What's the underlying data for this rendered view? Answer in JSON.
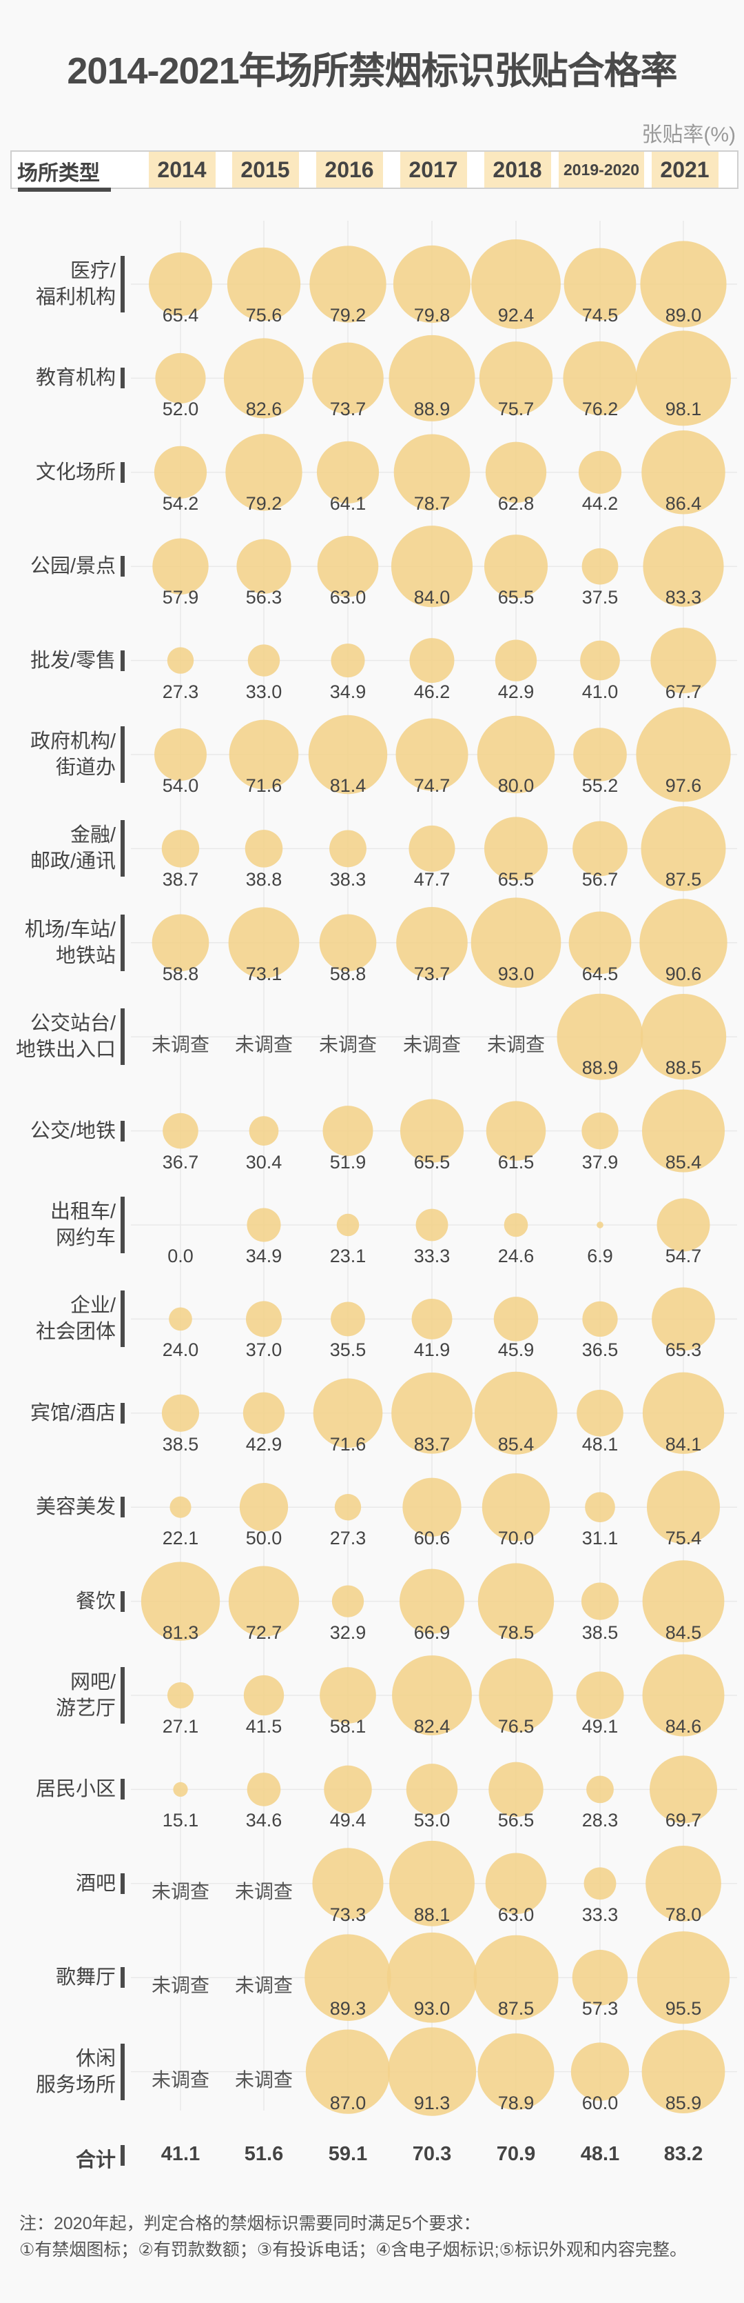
{
  "chart_data": {
    "type": "bubble-table",
    "title": "2014-2021年场所禁烟标识张贴合格率",
    "unit_label": "张贴率(%)",
    "row_header": "场所类型",
    "columns": [
      "2014",
      "2015",
      "2016",
      "2017",
      "2018",
      "2019-2020",
      "2021"
    ],
    "not_surveyed_label": "未调查",
    "rows": [
      {
        "label": "医疗/\n福利机构",
        "values": [
          65.4,
          75.6,
          79.2,
          79.8,
          92.4,
          74.5,
          89.0
        ]
      },
      {
        "label": "教育机构",
        "values": [
          52.0,
          82.6,
          73.7,
          88.9,
          75.7,
          76.2,
          98.1
        ]
      },
      {
        "label": "文化场所",
        "values": [
          54.2,
          79.2,
          64.1,
          78.7,
          62.8,
          44.2,
          86.4
        ]
      },
      {
        "label": "公园/景点",
        "values": [
          57.9,
          56.3,
          63.0,
          84.0,
          65.5,
          37.5,
          83.3
        ]
      },
      {
        "label": "批发/零售",
        "values": [
          27.3,
          33.0,
          34.9,
          46.2,
          42.9,
          41.0,
          67.7
        ]
      },
      {
        "label": "政府机构/\n街道办",
        "values": [
          54.0,
          71.6,
          81.4,
          74.7,
          80.0,
          55.2,
          97.6
        ]
      },
      {
        "label": "金融/\n邮政/通讯",
        "values": [
          38.7,
          38.8,
          38.3,
          47.7,
          65.5,
          56.7,
          87.5
        ]
      },
      {
        "label": "机场/车站/\n地铁站",
        "values": [
          58.8,
          73.1,
          58.8,
          73.7,
          93.0,
          64.5,
          90.6
        ]
      },
      {
        "label": "公交站台/\n地铁出入口",
        "values": [
          null,
          null,
          null,
          null,
          null,
          88.9,
          88.5
        ]
      },
      {
        "label": "公交/地铁",
        "values": [
          36.7,
          30.4,
          51.9,
          65.5,
          61.5,
          37.9,
          85.4
        ]
      },
      {
        "label": "出租车/\n网约车",
        "values": [
          0.0,
          34.9,
          23.1,
          33.3,
          24.6,
          6.9,
          54.7
        ]
      },
      {
        "label": "企业/\n社会团体",
        "values": [
          24.0,
          37.0,
          35.5,
          41.9,
          45.9,
          36.5,
          65.3
        ]
      },
      {
        "label": "宾馆/酒店",
        "values": [
          38.5,
          42.9,
          71.6,
          83.7,
          85.4,
          48.1,
          84.1
        ]
      },
      {
        "label": "美容美发",
        "values": [
          22.1,
          50.0,
          27.3,
          60.6,
          70.0,
          31.1,
          75.4
        ]
      },
      {
        "label": "餐饮",
        "values": [
          81.3,
          72.7,
          32.9,
          66.9,
          78.5,
          38.5,
          84.5
        ]
      },
      {
        "label": "网吧/\n游艺厅",
        "values": [
          27.1,
          41.5,
          58.1,
          82.4,
          76.5,
          49.1,
          84.6
        ]
      },
      {
        "label": "居民小区",
        "values": [
          15.1,
          34.6,
          49.4,
          53.0,
          56.5,
          28.3,
          69.7
        ]
      },
      {
        "label": "酒吧",
        "values": [
          null,
          null,
          73.3,
          88.1,
          63.0,
          33.3,
          78.0
        ]
      },
      {
        "label": "歌舞厅",
        "values": [
          null,
          null,
          89.3,
          93.0,
          87.5,
          57.3,
          95.5
        ]
      },
      {
        "label": "休闲\n服务场所",
        "values": [
          null,
          null,
          87.0,
          91.3,
          78.9,
          60.0,
          85.9
        ]
      }
    ],
    "total": {
      "label": "合计",
      "values": [
        "41.1",
        "51.6",
        "59.1",
        "70.3",
        "70.9",
        "48.1",
        "83.2"
      ]
    },
    "grid": true,
    "bubble_color": "#f2d28a",
    "header_highlight_color": "#fbe8bf"
  },
  "note": {
    "line1": "注：2020年起，判定合格的禁烟标识需要同时满足5个要求：",
    "line2": "①有禁烟图标；②有罚款数额；③有投诉电话；④含电子烟标识;⑤标识外观和内容完整。"
  }
}
